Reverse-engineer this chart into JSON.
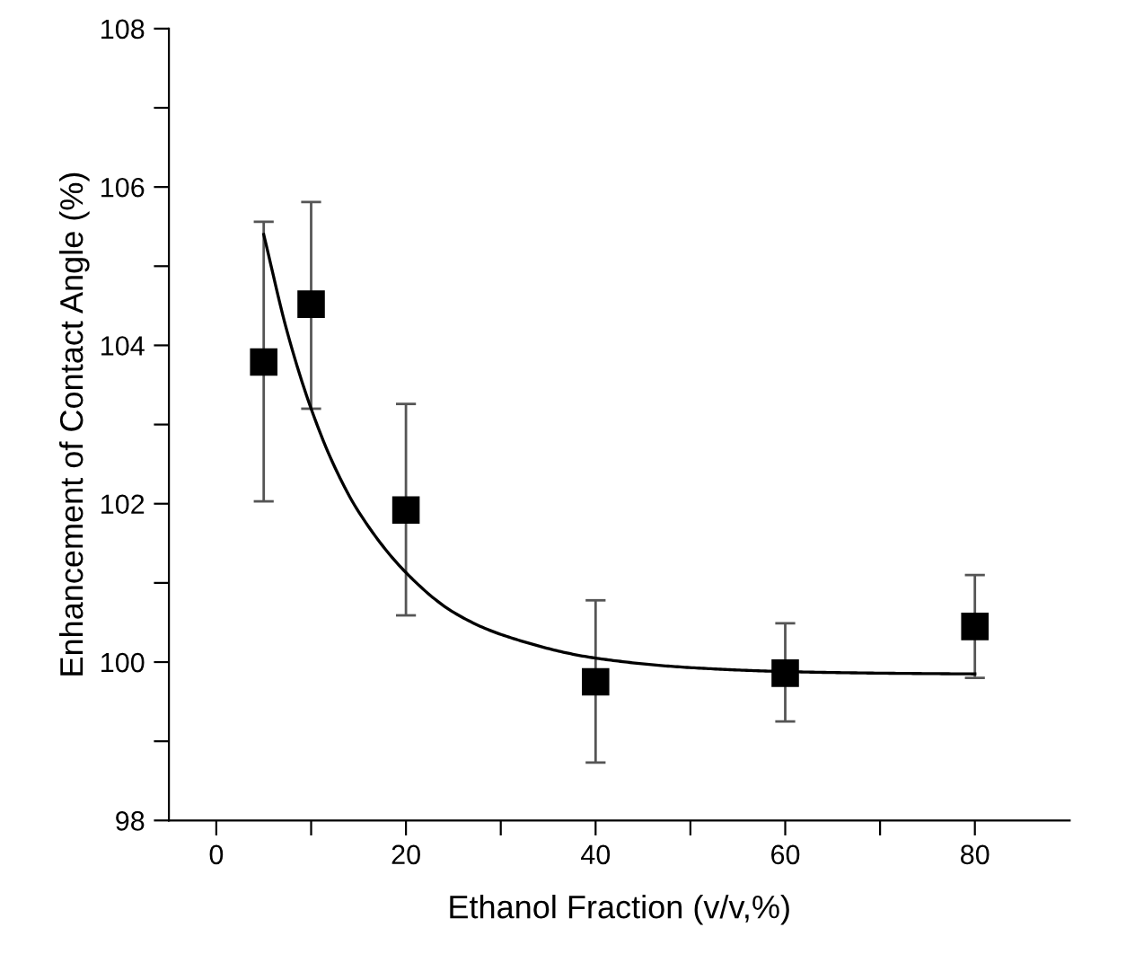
{
  "chart_data": {
    "type": "scatter",
    "xlabel": "Ethanol Fraction (v/v,%)",
    "ylabel": "Enhancement of Contact Angle (%)",
    "xlim": [
      -5,
      90
    ],
    "ylim": [
      98,
      108
    ],
    "xticks": [
      0,
      {
        "value": 10,
        "label": null
      },
      20,
      {
        "value": 30,
        "label": null
      },
      40,
      {
        "value": 50,
        "label": null
      },
      60,
      {
        "value": 70,
        "label": null
      },
      80
    ],
    "yticks": [
      98,
      {
        "value": 99,
        "label": null
      },
      100,
      {
        "value": 101,
        "label": null
      },
      102,
      {
        "value": 103,
        "label": null
      },
      104,
      {
        "value": 105,
        "label": null
      },
      106,
      {
        "value": 107,
        "label": null
      },
      108
    ],
    "grid": false,
    "legend": false,
    "series": [
      {
        "color": "#000000",
        "marker": "square",
        "x": [
          5,
          10,
          20,
          40,
          60,
          80
        ],
        "values": [
          103.79,
          104.52,
          101.92,
          99.75,
          99.86,
          100.45
        ],
        "errors": [
          [
            102.03,
            105.56
          ],
          [
            103.2,
            105.81
          ],
          [
            100.59,
            103.26
          ],
          [
            98.73,
            100.78
          ],
          [
            99.25,
            100.49
          ],
          [
            99.8,
            101.1
          ]
        ]
      },
      {
        "type": "line",
        "color": "#000000",
        "marker": "none",
        "line_style": "solid",
        "x": [
          5,
          7.5,
          10,
          12.5,
          15,
          20,
          25,
          30,
          40,
          50,
          60,
          70,
          80
        ],
        "values": [
          105.4,
          104.16,
          103.2,
          102.46,
          101.9,
          101.13,
          100.63,
          100.35,
          100.05,
          99.93,
          99.88,
          99.86,
          99.85
        ]
      }
    ]
  }
}
